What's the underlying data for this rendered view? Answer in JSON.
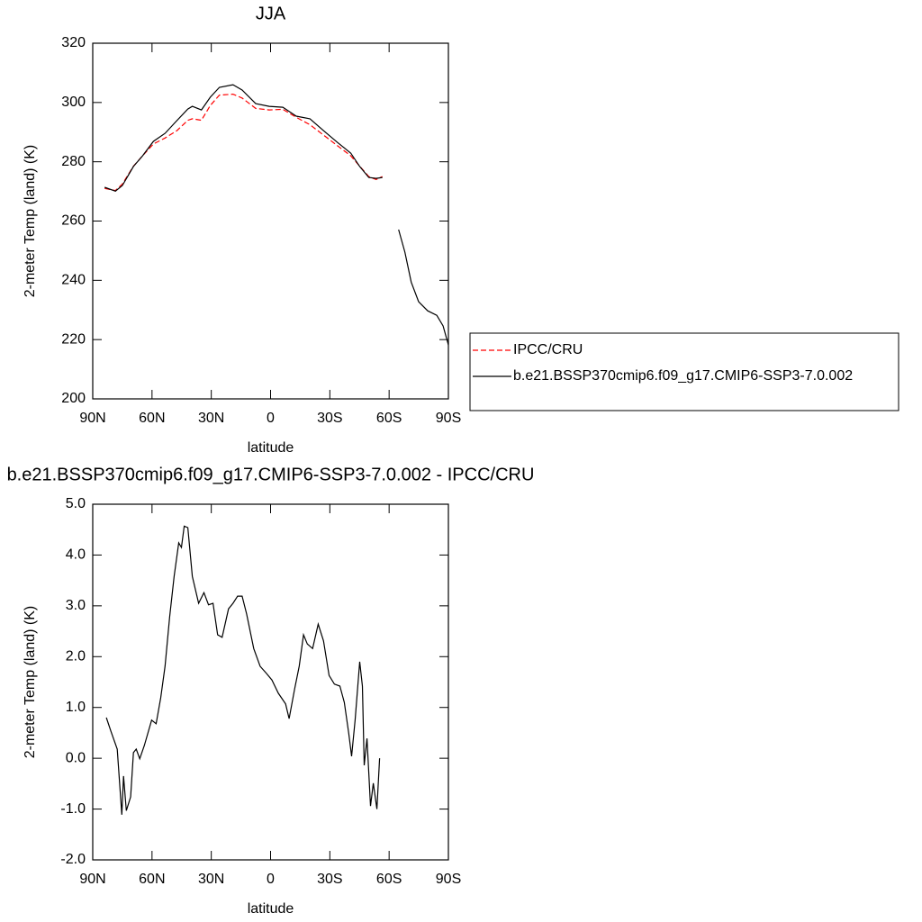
{
  "chart_data": [
    {
      "type": "line",
      "title": "JJA",
      "x_label": "latitude",
      "y_label": "2-meter Temp (land) (K)",
      "x": [
        84,
        78.5,
        75,
        69.4,
        64.8,
        59.3,
        53.4,
        47.4,
        41.9,
        39.6,
        35,
        30.5,
        25.9,
        19,
        14.4,
        7.5,
        0.7,
        -6.2,
        -13,
        -19.9,
        -26.8,
        -33.7,
        -40.6,
        -45.1,
        -49.7,
        -53.4,
        -56.6,
        null,
        -64.8,
        -68,
        -71.2,
        -74.9,
        -79.5,
        -84.1,
        -87.3,
        -90
      ],
      "series": [
        {
          "name": "IPCC/CRU",
          "color": "#ff0000",
          "dash": "dashed",
          "values": [
            271,
            270.3,
            272.5,
            278.5,
            282,
            286,
            288,
            290.5,
            294,
            294.5,
            294,
            299,
            302.5,
            302.8,
            301.5,
            298,
            297.5,
            297.7,
            295,
            292.5,
            289,
            285.5,
            282,
            278.5,
            275,
            274,
            275,
            null,
            null,
            null,
            null,
            null,
            null,
            null,
            null,
            null
          ]
        },
        {
          "name": "b.e21.BSSP370cmip6.f09_g17.CMIP6-SSP3-7.0.002",
          "color": "#000000",
          "dash": "solid",
          "values": [
            271.4,
            270.1,
            272,
            278.4,
            282,
            286.9,
            289.6,
            293.9,
            297.8,
            298.7,
            297.5,
            301.8,
            305.1,
            306,
            304.2,
            299.6,
            298.7,
            298.4,
            295.4,
            294.5,
            290.5,
            286.6,
            282.9,
            278.4,
            274.7,
            274.4,
            274.7,
            null,
            257.1,
            249.5,
            239.4,
            232.8,
            229.7,
            228.2,
            224.6,
            218.2
          ]
        }
      ],
      "xlim": [
        90,
        -90
      ],
      "xticks": [
        {
          "value": 90,
          "label": "90N"
        },
        {
          "value": 60,
          "label": "60N"
        },
        {
          "value": 30,
          "label": "30N"
        },
        0,
        {
          "value": -30,
          "label": "30S"
        },
        {
          "value": -60,
          "label": "60S"
        },
        {
          "value": -90,
          "label": "90S"
        }
      ],
      "ylim": [
        200,
        320
      ],
      "yticks": [
        200,
        220,
        240,
        260,
        280,
        300,
        320
      ]
    },
    {
      "type": "line",
      "title": "b.e21.BSSP370cmip6.f09_g17.CMIP6-SSP3-7.0.002 - IPCC/CRU",
      "x_label": "latitude",
      "y_label": "2-meter Temp (land) (K)",
      "x": [
        83.1,
        80.8,
        77.6,
        75.3,
        74.4,
        73,
        70.8,
        69.4,
        68,
        66.2,
        63.9,
        60.2,
        57.9,
        55.6,
        53.4,
        51.1,
        48.8,
        46.5,
        45.1,
        43.7,
        41.9,
        39.6,
        36.4,
        33.7,
        31.4,
        29.1,
        26.8,
        24.5,
        21.3,
        19,
        16.7,
        14.4,
        12.1,
        8.5,
        5.3,
        2.1,
        -0.7,
        -3.9,
        -7.6,
        -9.4,
        -12.2,
        -14.5,
        -16.7,
        -18.6,
        -21.3,
        -24.1,
        -26.8,
        -29.6,
        -32.3,
        -35.1,
        -37.3,
        -39.6,
        -41,
        -42.8,
        -45.1,
        -46.5,
        -47.4,
        -48.8,
        -50.6,
        -52,
        -53.8,
        -55.2
      ],
      "series": [
        {
          "color": "#000000",
          "dash": "solid",
          "values": [
            0.8,
            0.53,
            0.18,
            -1.11,
            -0.35,
            -1.03,
            -0.76,
            0.11,
            0.18,
            -0.01,
            0.25,
            0.75,
            0.68,
            1.19,
            1.81,
            2.78,
            3.58,
            4.24,
            4.15,
            4.57,
            4.54,
            3.58,
            3.05,
            3.26,
            3.02,
            3.05,
            2.43,
            2.38,
            2.94,
            3.05,
            3.19,
            3.19,
            2.84,
            2.16,
            1.81,
            1.67,
            1.54,
            1.28,
            1.07,
            0.78,
            1.37,
            1.81,
            2.43,
            2.25,
            2.16,
            2.64,
            2.31,
            1.63,
            1.46,
            1.42,
            1.1,
            0.48,
            0.04,
            0.75,
            1.9,
            1.42,
            -0.14,
            0.39,
            -0.94,
            -0.49,
            -1.0,
            0.0
          ]
        }
      ],
      "xlim": [
        90,
        -90
      ],
      "xticks": [
        {
          "value": 90,
          "label": "90N"
        },
        {
          "value": 60,
          "label": "60N"
        },
        {
          "value": 30,
          "label": "30N"
        },
        0,
        {
          "value": -30,
          "label": "30S"
        },
        {
          "value": -60,
          "label": "60S"
        },
        {
          "value": -90,
          "label": "90S"
        }
      ],
      "ylim": [
        -2,
        5
      ],
      "yticks": [
        {
          "value": -2,
          "label": "-2.0"
        },
        {
          "value": -1,
          "label": "-1.0"
        },
        {
          "value": 0,
          "label": "0.0"
        },
        {
          "value": 1,
          "label": "1.0"
        },
        {
          "value": 2,
          "label": "2.0"
        },
        {
          "value": 3,
          "label": "3.0"
        },
        {
          "value": 4,
          "label": "4.0"
        },
        {
          "value": 5,
          "label": "5.0"
        }
      ]
    }
  ]
}
